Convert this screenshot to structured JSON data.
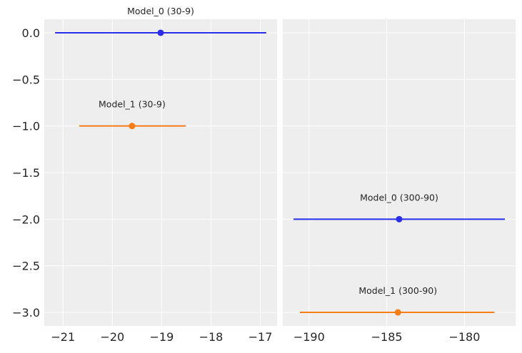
{
  "chart_data": [
    {
      "type": "scatter",
      "panel": "left",
      "xlim": [
        -21.38,
        -16.66
      ],
      "ylim": [
        -3.145,
        0.145
      ],
      "xticks": [
        -21,
        -20,
        -19,
        -18,
        -17
      ],
      "yticks": [
        0.0,
        -0.5,
        -1.0,
        -1.5,
        -2.0,
        -2.5,
        -3.0
      ],
      "grid": true,
      "series": [
        {
          "label": "Model_0 (30-9)",
          "x": -19.02,
          "y": 0,
          "interval": [
            -21.16,
            -16.88
          ],
          "color": "#2a2eec"
        },
        {
          "label": "Model_1 (30-9)",
          "x": -19.6,
          "y": -1,
          "interval": [
            -20.67,
            -18.51
          ],
          "color": "#fa7c17"
        }
      ]
    },
    {
      "type": "scatter",
      "panel": "right",
      "xlim": [
        -191.69,
        -176.71
      ],
      "ylim": [
        -3.145,
        0.145
      ],
      "xticks": [
        -190,
        -185,
        -180
      ],
      "grid": true,
      "series": [
        {
          "label": "Model_0 (300-90)",
          "x": -184.2,
          "y": -2,
          "interval": [
            -191.0,
            -177.4
          ],
          "color": "#2a2eec"
        },
        {
          "label": "Model_1 (300-90)",
          "x": -184.28,
          "y": -3,
          "interval": [
            -190.59,
            -178.07
          ],
          "color": "#fa7c17"
        }
      ]
    }
  ]
}
